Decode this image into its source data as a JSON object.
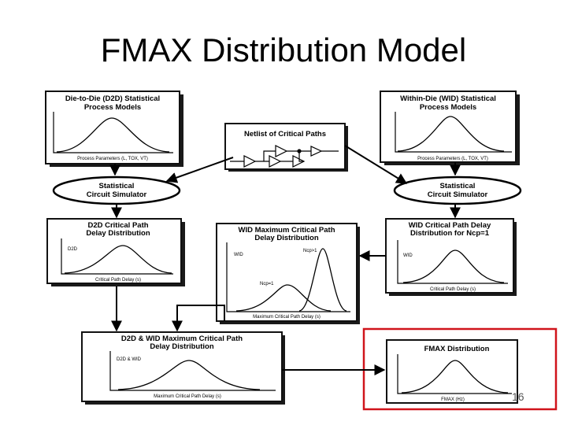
{
  "title": "FMAX Distribution Model",
  "page_number": "16",
  "boxes": {
    "d2d_models": {
      "title_line1": "Die-to-Die (D2D) Statistical",
      "title_line2": "Process Models",
      "axis": "Process Parameters (L, TOX, VT)"
    },
    "wid_models": {
      "title_line1": "Within-Die (WID) Statistical",
      "title_line2": "Process Models",
      "axis": "Process Parameters (L, TOX, VT)"
    },
    "netlist": {
      "title": "Netlist of Critical Paths"
    },
    "sim_left": {
      "line1": "Statistical",
      "line2": "Circuit Simulator"
    },
    "sim_right": {
      "line1": "Statistical",
      "line2": "Circuit Simulator"
    },
    "d2d_delay": {
      "title_line1": "D2D Critical Path",
      "title_line2": "Delay Distribution",
      "tag": "D2D",
      "axis": "Critical Path Delay (s)"
    },
    "wid_max": {
      "title_line1": "WID Maximum Critical Path",
      "title_line2": "Delay Distribution",
      "tag": "WID",
      "label_top": "Ncp>1",
      "label_bottom": "Ncp=1",
      "axis": "Maximum Critical Path Delay (s)"
    },
    "wid_delay": {
      "title_line1": "WID Critical Path Delay",
      "title_line2": "Distribution for Ncp=1",
      "tag": "WID",
      "axis": "Critical Path Delay (s)"
    },
    "combined": {
      "title_line1": "D2D & WID Maximum Critical Path",
      "title_line2": "Delay Distribution",
      "tag": "D2D & WID",
      "axis": "Maximum Critical Path Delay (s)"
    },
    "fmax": {
      "title": "FMAX Distribution",
      "axis": "FMAX (Hz)"
    }
  },
  "colors": {
    "highlight": "#d0141b"
  }
}
